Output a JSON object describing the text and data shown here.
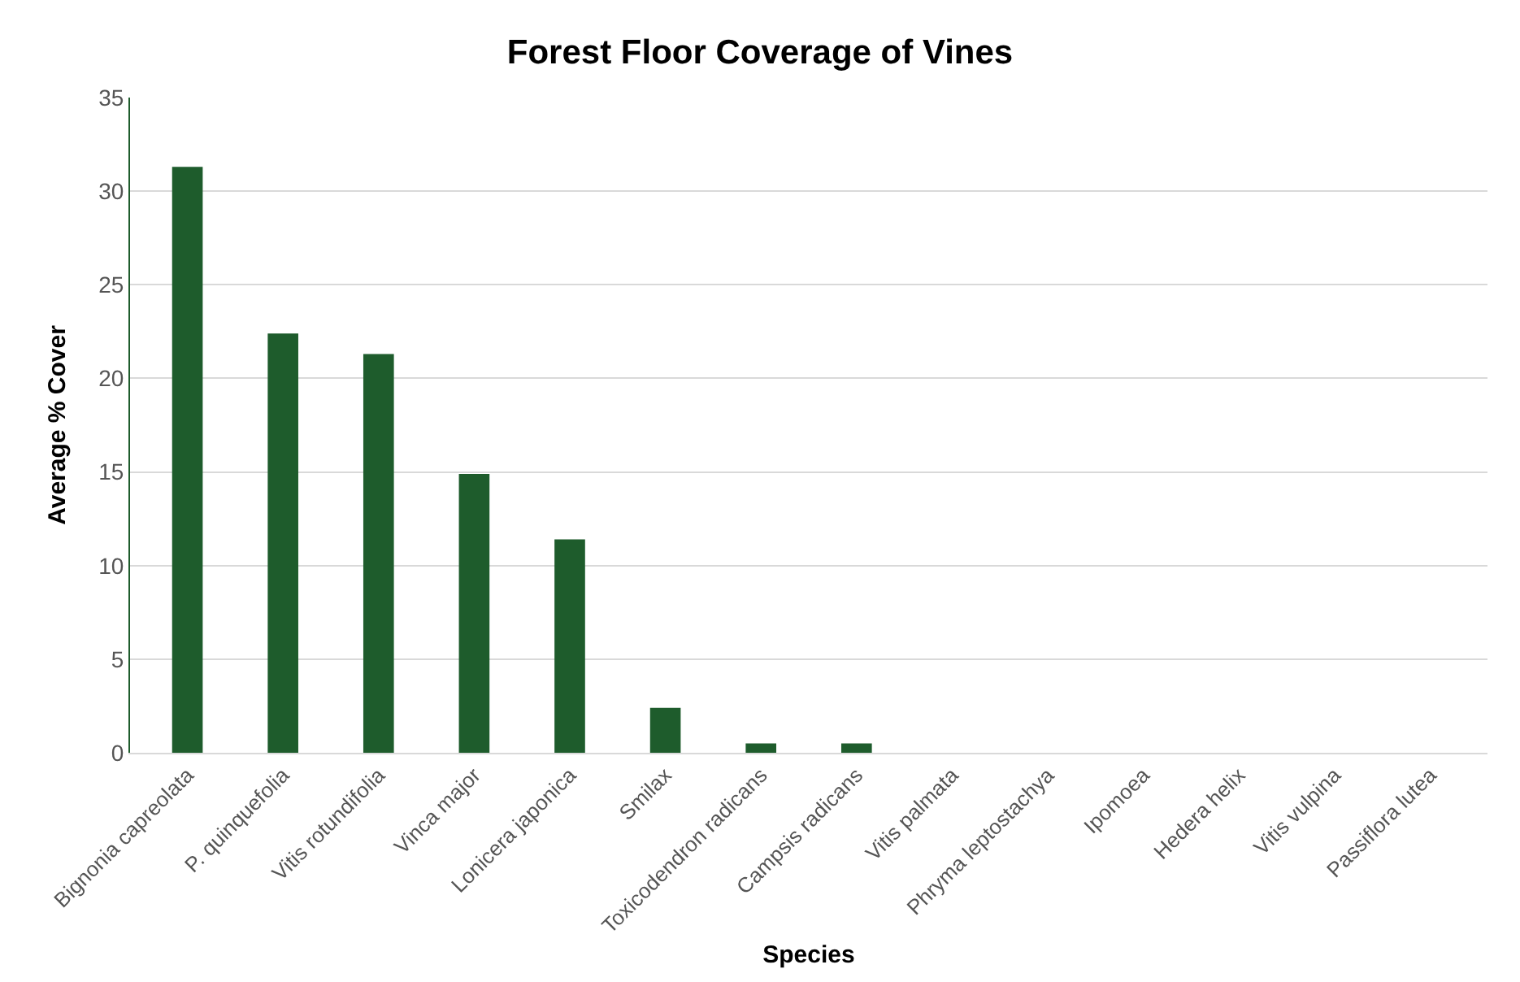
{
  "chart_data": {
    "type": "bar",
    "title": "Forest Floor Coverage of Vines",
    "xlabel": "Species",
    "ylabel": "Average % Cover",
    "categories": [
      "Bignonia capreolata",
      "P. quinquefolia",
      "Vitis rotundifolia",
      "Vinca major",
      "Lonicera japonica",
      "Smilax",
      "Toxicodendron radicans",
      "Campsis radicans",
      "Vitis palmata",
      "Phryma leptostachya",
      "Ipomoea",
      "Hedera helix",
      "Vitis vulpina",
      "Passiflora lutea"
    ],
    "values": [
      31.3,
      22.4,
      21.3,
      14.9,
      11.4,
      2.4,
      0.5,
      0.5,
      0,
      0,
      0,
      0,
      0,
      0
    ],
    "color": "#1e5c2c",
    "ylim": [
      0,
      35
    ],
    "yticks": [
      0,
      5,
      10,
      15,
      20,
      25,
      30,
      35
    ],
    "grid": "y"
  }
}
